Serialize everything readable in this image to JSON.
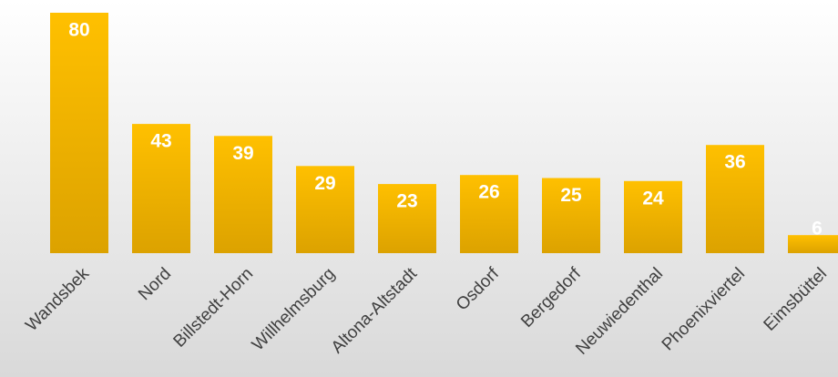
{
  "chart_data": {
    "type": "bar",
    "categories": [
      "Wandsbek",
      "Nord",
      "Billstedt-Horn",
      "Willhelmsburg",
      "Altona-Altstadt",
      "Osdorf",
      "Bergedorf",
      "Neuwiedenthal",
      "Phoenixviertel",
      "Eimsbüttel"
    ],
    "values": [
      80,
      43,
      39,
      29,
      23,
      26,
      25,
      24,
      36,
      6
    ],
    "color": "#ffc000"
  }
}
